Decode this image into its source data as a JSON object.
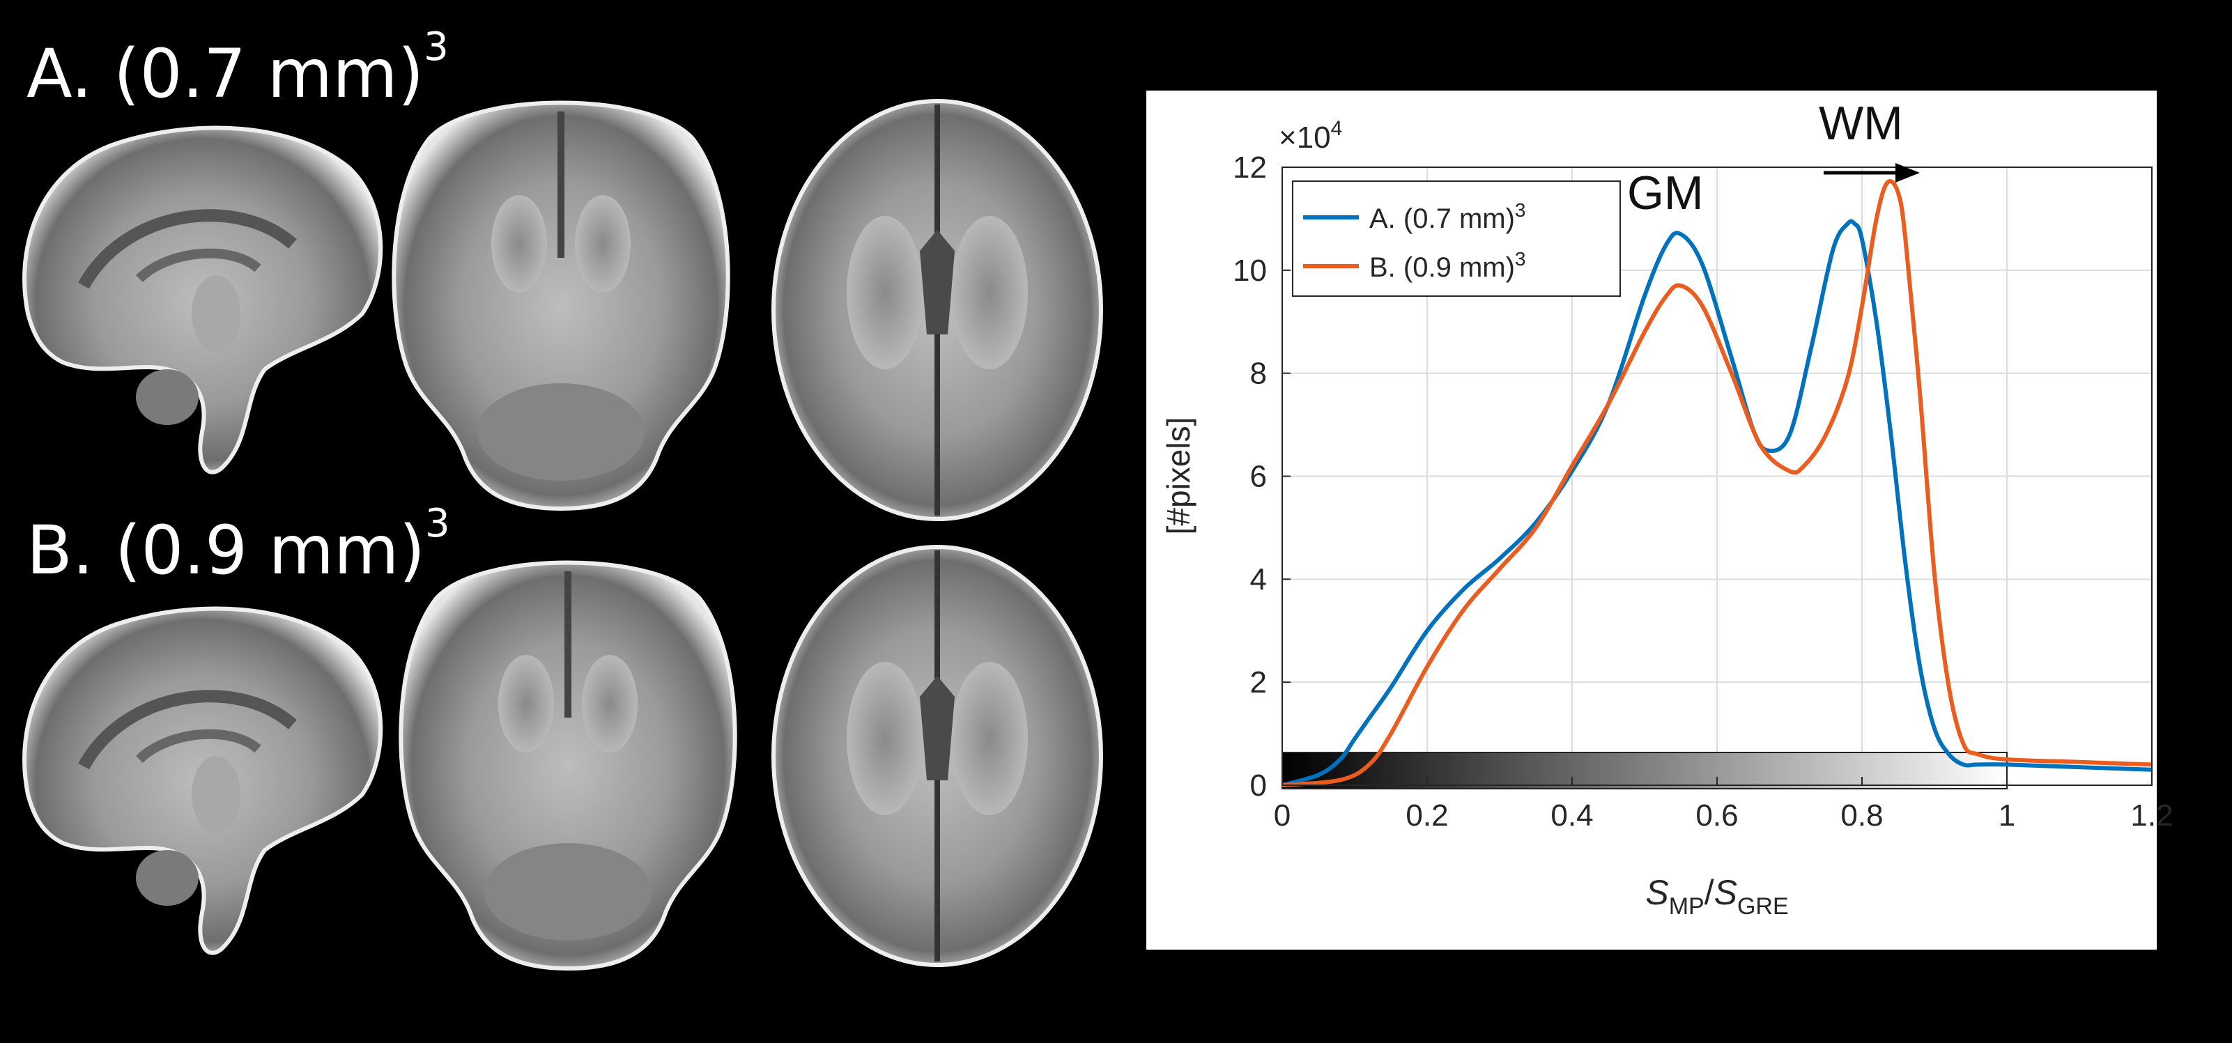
{
  "figure": {
    "row_a_label": "A. (0.7 mm)",
    "row_b_label": "B. (0.9 mm)",
    "exponent": "3",
    "slices": [
      "sagittal",
      "coronal",
      "axial"
    ],
    "colors": {
      "background": "#000000",
      "series_a": "#0072BD",
      "series_b": "#EB5C1F"
    }
  },
  "chart_data": {
    "type": "line",
    "xlabel": "S_MP/S_GRE",
    "xlabel_parts": {
      "s1": "S",
      "sub1": "MP",
      "slash": "/",
      "s2": "S",
      "sub2": "GRE"
    },
    "ylabel": "[#pixels]",
    "y_exponent_label": "×10",
    "y_exponent_power": "4",
    "xlim": [
      0,
      1.2
    ],
    "ylim": [
      0,
      12
    ],
    "xticks": [
      "0",
      "0.2",
      "0.4",
      "0.6",
      "0.8",
      "1",
      "1.2"
    ],
    "yticks": [
      "0",
      "2",
      "4",
      "6",
      "8",
      "10",
      "12"
    ],
    "grid": true,
    "legend_position": "top-left",
    "annotations": {
      "gm": "GM",
      "wm": "WM"
    },
    "colorbar_range": [
      0,
      1
    ],
    "series": [
      {
        "name": "A. (0.7 mm)",
        "name_sup": "3",
        "color": "#0072BD",
        "x": [
          0.0,
          0.05,
          0.08,
          0.1,
          0.12,
          0.15,
          0.2,
          0.25,
          0.3,
          0.35,
          0.4,
          0.45,
          0.5,
          0.53,
          0.55,
          0.58,
          0.62,
          0.65,
          0.67,
          0.7,
          0.73,
          0.76,
          0.78,
          0.79,
          0.8,
          0.82,
          0.84,
          0.86,
          0.88,
          0.9,
          0.92,
          0.94,
          0.96,
          1.0,
          1.1,
          1.2
        ],
        "y": [
          0.0,
          0.2,
          0.5,
          0.9,
          1.3,
          1.9,
          3.0,
          3.8,
          4.4,
          5.1,
          6.1,
          7.4,
          9.5,
          10.5,
          10.7,
          10.1,
          8.3,
          6.9,
          6.5,
          6.8,
          8.5,
          10.4,
          10.9,
          10.9,
          10.6,
          9.0,
          6.8,
          4.3,
          2.3,
          1.1,
          0.6,
          0.4,
          0.4,
          0.4,
          0.35,
          0.3
        ]
      },
      {
        "name": "B. (0.9 mm)",
        "name_sup": "3",
        "color": "#EB5C1F",
        "x": [
          0.0,
          0.08,
          0.12,
          0.15,
          0.2,
          0.25,
          0.3,
          0.35,
          0.4,
          0.45,
          0.5,
          0.53,
          0.55,
          0.58,
          0.62,
          0.66,
          0.7,
          0.72,
          0.75,
          0.78,
          0.8,
          0.82,
          0.835,
          0.85,
          0.86,
          0.88,
          0.9,
          0.92,
          0.94,
          0.96,
          1.0,
          1.1,
          1.2
        ],
        "y": [
          0.0,
          0.1,
          0.4,
          1.0,
          2.3,
          3.4,
          4.2,
          5.0,
          6.2,
          7.4,
          8.8,
          9.5,
          9.7,
          9.3,
          8.0,
          6.6,
          6.1,
          6.2,
          6.8,
          7.9,
          9.3,
          11.0,
          11.7,
          11.5,
          10.6,
          7.6,
          4.1,
          1.9,
          0.8,
          0.6,
          0.5,
          0.45,
          0.4
        ]
      }
    ]
  }
}
